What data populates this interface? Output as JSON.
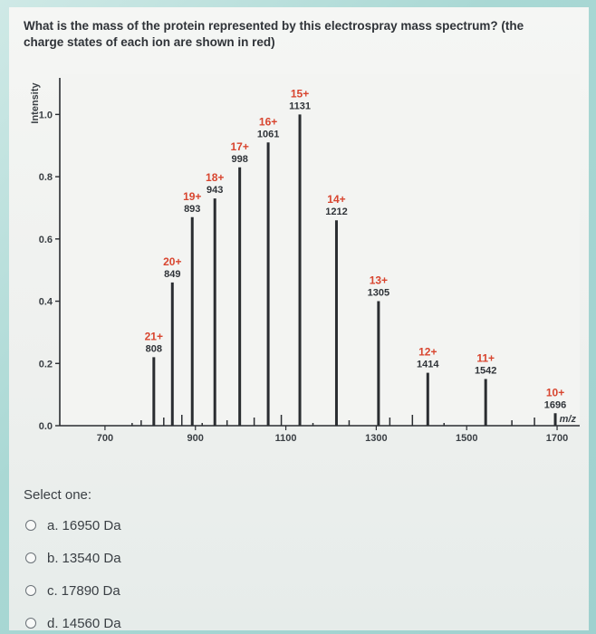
{
  "question": "What is the mass of the protein represented by this electrospray mass spectrum? (the charge states of each ion are shown in red)",
  "select_label": "Select one:",
  "options": [
    {
      "letter": "a.",
      "text": "16950 Da"
    },
    {
      "letter": "b.",
      "text": "13540 Da"
    },
    {
      "letter": "c.",
      "text": "17890 Da"
    },
    {
      "letter": "d.",
      "text": "14560 Da"
    }
  ],
  "chart_data": {
    "type": "bar",
    "ylabel": "Intensity",
    "xlabel": "m/z",
    "xlim": [
      600,
      1750
    ],
    "ylim": [
      0,
      1.1
    ],
    "xticks": [
      700,
      900,
      1100,
      1300,
      1500,
      1700
    ],
    "yticks": [
      "0.0",
      "0.2",
      "0.4",
      "0.6",
      "0.8",
      "1.0"
    ],
    "peaks": [
      {
        "charge": "21+",
        "mz": "808",
        "x": 808,
        "y": 0.22
      },
      {
        "charge": "20+",
        "mz": "849",
        "x": 849,
        "y": 0.46
      },
      {
        "charge": "19+",
        "mz": "893",
        "x": 893,
        "y": 0.67
      },
      {
        "charge": "18+",
        "mz": "943",
        "x": 943,
        "y": 0.73
      },
      {
        "charge": "17+",
        "mz": "998",
        "x": 998,
        "y": 0.83
      },
      {
        "charge": "16+",
        "mz": "1061",
        "x": 1061,
        "y": 0.91
      },
      {
        "charge": "15+",
        "mz": "1131",
        "x": 1131,
        "y": 1.0
      },
      {
        "charge": "14+",
        "mz": "1212",
        "x": 1212,
        "y": 0.66
      },
      {
        "charge": "13+",
        "mz": "1305",
        "x": 1305,
        "y": 0.4
      },
      {
        "charge": "12+",
        "mz": "1414",
        "x": 1414,
        "y": 0.17
      },
      {
        "charge": "11+",
        "mz": "1542",
        "x": 1542,
        "y": 0.15
      },
      {
        "charge": "10+",
        "mz": "1696",
        "x": 1696,
        "y": 0.04
      }
    ],
    "charge_color": "#d8452f",
    "peak_color": "#2a2d31"
  }
}
